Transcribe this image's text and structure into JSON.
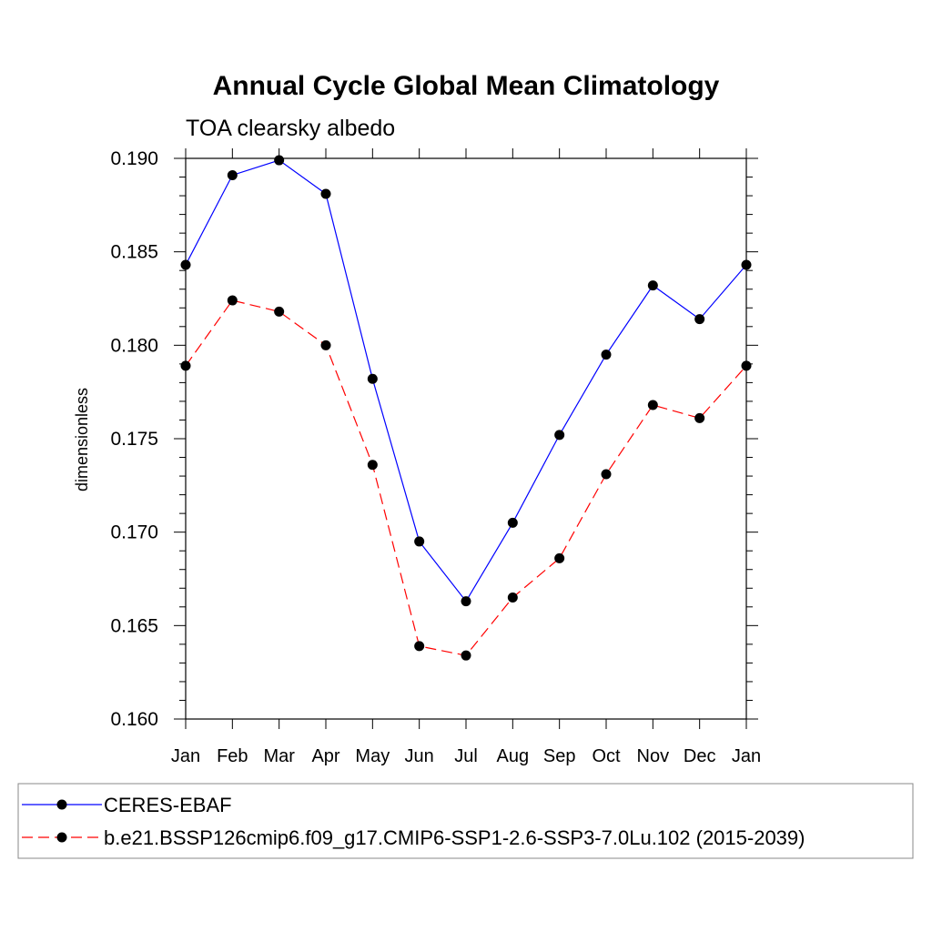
{
  "chart_data": {
    "type": "line",
    "title": "Annual Cycle Global Mean Climatology",
    "subtitle": "TOA clearsky albedo",
    "xlabel": "",
    "ylabel": "dimensionless",
    "categories": [
      "Jan",
      "Feb",
      "Mar",
      "Apr",
      "May",
      "Jun",
      "Jul",
      "Aug",
      "Sep",
      "Oct",
      "Nov",
      "Dec",
      "Jan"
    ],
    "ylim": [
      0.16,
      0.19
    ],
    "yticks": [
      "0.160",
      "0.165",
      "0.170",
      "0.175",
      "0.180",
      "0.185",
      "0.190"
    ],
    "grid": false,
    "legend_position": "bottom",
    "series": [
      {
        "name": "CERES-EBAF",
        "color": "#0000ff",
        "line_style": "solid",
        "marker": "filled-circle",
        "values": [
          0.1843,
          0.1891,
          0.1899,
          0.1881,
          0.1782,
          0.1695,
          0.1663,
          0.1705,
          0.1752,
          0.1795,
          0.1832,
          0.1814,
          0.1843
        ]
      },
      {
        "name": "b.e21.BSSP126cmip6.f09_g17.CMIP6-SSP1-2.6-SSP3-7.0Lu.102 (2015-2039)",
        "color": "#ff0000",
        "line_style": "dashed",
        "marker": "filled-circle",
        "values": [
          0.1789,
          0.1824,
          0.1818,
          0.18,
          0.1736,
          0.1639,
          0.1634,
          0.1665,
          0.1686,
          0.1731,
          0.1768,
          0.1761,
          0.1789
        ]
      }
    ]
  }
}
